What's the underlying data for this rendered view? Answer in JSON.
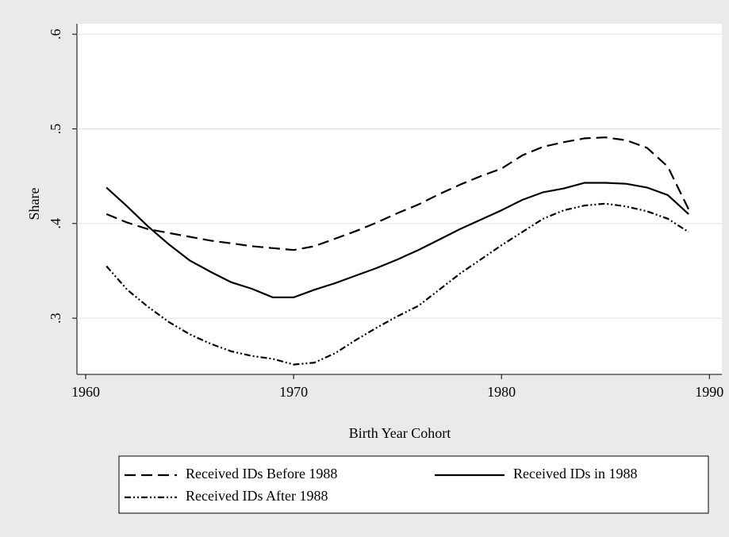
{
  "chart_data": {
    "type": "line",
    "x_label": "Birth Year Cohort",
    "y_label": "Share",
    "x": [
      1961,
      1962,
      1963,
      1964,
      1965,
      1966,
      1967,
      1968,
      1969,
      1970,
      1971,
      1972,
      1973,
      1974,
      1975,
      1976,
      1977,
      1978,
      1979,
      1980,
      1981,
      1982,
      1983,
      1984,
      1985,
      1986,
      1987,
      1988,
      1989
    ],
    "series": [
      {
        "name": "Received IDs Before 1988",
        "color": "#000000",
        "dash": "14,7",
        "values": [
          0.41,
          0.401,
          0.394,
          0.39,
          0.386,
          0.382,
          0.379,
          0.376,
          0.374,
          0.372,
          0.376,
          0.384,
          0.392,
          0.401,
          0.411,
          0.42,
          0.431,
          0.441,
          0.45,
          0.458,
          0.472,
          0.481,
          0.486,
          0.49,
          0.491,
          0.488,
          0.48,
          0.46,
          0.415
        ]
      },
      {
        "name": "Received IDs in 1988",
        "color": "#000000",
        "dash": "none",
        "values": [
          0.438,
          0.418,
          0.397,
          0.378,
          0.361,
          0.349,
          0.338,
          0.331,
          0.322,
          0.322,
          0.33,
          0.337,
          0.345,
          0.353,
          0.362,
          0.372,
          0.383,
          0.394,
          0.404,
          0.414,
          0.425,
          0.433,
          0.437,
          0.443,
          0.443,
          0.442,
          0.438,
          0.43,
          0.41
        ]
      },
      {
        "name": "Received IDs After 1988",
        "color": "#000000",
        "dash": "8,3,2,3,2,3",
        "values": [
          0.355,
          0.33,
          0.312,
          0.296,
          0.283,
          0.273,
          0.265,
          0.26,
          0.257,
          0.251,
          0.253,
          0.263,
          0.277,
          0.29,
          0.302,
          0.313,
          0.33,
          0.347,
          0.362,
          0.377,
          0.391,
          0.405,
          0.414,
          0.419,
          0.421,
          0.418,
          0.413,
          0.405,
          0.391
        ]
      }
    ],
    "xlim": [
      1959.58,
      1990.6
    ],
    "xticks": [
      1960,
      1970,
      1980,
      1990
    ],
    "ylim": [
      0.2406,
      0.611
    ],
    "yticks": [
      {
        "value": 0.3,
        "label": ".3"
      },
      {
        "value": 0.4,
        "label": ".4"
      },
      {
        "value": 0.5,
        "label": ".5"
      },
      {
        "value": 0.6,
        "label": ".6"
      }
    ],
    "grid": true
  }
}
